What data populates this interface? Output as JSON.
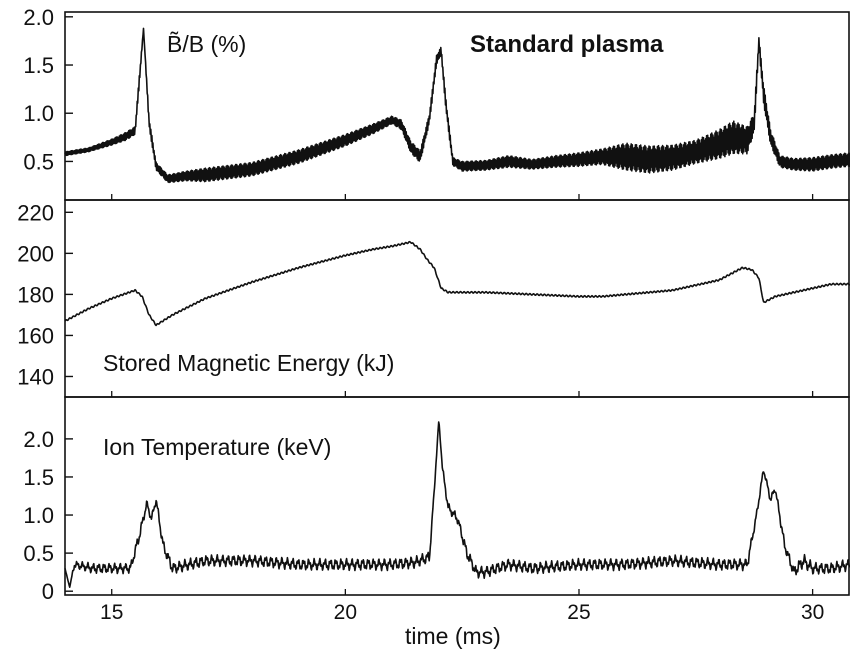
{
  "chart_data": [
    {
      "type": "line",
      "panel_label": "B̃/B (%)",
      "annotation": "Standard plasma",
      "xlim": [
        14,
        30.8
      ],
      "ylim": [
        0.1,
        2.05
      ],
      "yticks": [
        "0.5",
        "1.0",
        "1.5",
        "2.0"
      ],
      "ytick_values": [
        0.5,
        1.0,
        1.5,
        2.0
      ],
      "series": [
        {
          "style": "oscillating",
          "x": [
            14.0,
            14.5,
            15.0,
            15.3,
            15.5,
            15.6,
            15.68,
            15.8,
            15.95,
            16.2,
            16.6,
            17.0,
            18.0,
            19.0,
            20.0,
            20.6,
            21.0,
            21.2,
            21.4,
            21.6,
            21.8,
            21.95,
            22.05,
            22.15,
            22.3,
            22.5,
            23.0,
            23.5,
            24.0,
            24.5,
            25.0,
            25.5,
            26.0,
            26.5,
            27.0,
            27.5,
            28.0,
            28.3,
            28.6,
            28.75,
            28.85,
            28.95,
            29.1,
            29.3,
            29.6,
            30.0,
            30.4,
            30.8
          ],
          "y": [
            0.58,
            0.62,
            0.7,
            0.76,
            0.82,
            1.4,
            1.88,
            0.9,
            0.45,
            0.32,
            0.35,
            0.36,
            0.42,
            0.55,
            0.72,
            0.84,
            0.93,
            0.88,
            0.65,
            0.55,
            0.95,
            1.55,
            1.65,
            1.1,
            0.5,
            0.45,
            0.46,
            0.5,
            0.47,
            0.5,
            0.52,
            0.55,
            0.55,
            0.52,
            0.54,
            0.6,
            0.68,
            0.75,
            0.72,
            0.9,
            1.75,
            1.2,
            0.75,
            0.5,
            0.47,
            0.47,
            0.5,
            0.52
          ],
          "amp": [
            0.02,
            0.02,
            0.03,
            0.04,
            0.04,
            0.05,
            0.0,
            0.05,
            0.04,
            0.04,
            0.05,
            0.07,
            0.07,
            0.07,
            0.06,
            0.05,
            0.04,
            0.05,
            0.06,
            0.06,
            0.05,
            0.05,
            0.04,
            0.06,
            0.04,
            0.05,
            0.05,
            0.06,
            0.05,
            0.06,
            0.07,
            0.08,
            0.14,
            0.14,
            0.13,
            0.12,
            0.15,
            0.17,
            0.14,
            0.1,
            0.05,
            0.1,
            0.08,
            0.06,
            0.06,
            0.07,
            0.07,
            0.07
          ]
        }
      ]
    },
    {
      "type": "line",
      "panel_label": "Stored Magnetic Energy (kJ)",
      "xlim": [
        14,
        30.8
      ],
      "ylim": [
        130,
        226
      ],
      "yticks": [
        "140",
        "160",
        "180",
        "200",
        "220"
      ],
      "ytick_values": [
        140,
        160,
        180,
        200,
        220
      ],
      "series": [
        {
          "style": "smooth",
          "x": [
            14.0,
            14.5,
            15.0,
            15.5,
            15.65,
            15.8,
            15.95,
            16.3,
            17.0,
            18.0,
            19.0,
            20.0,
            20.6,
            21.0,
            21.4,
            21.6,
            21.75,
            21.9,
            22.05,
            22.2,
            22.5,
            23.0,
            24.0,
            25.0,
            25.5,
            26.0,
            27.0,
            28.0,
            28.5,
            28.7,
            28.85,
            28.95,
            29.2,
            29.6,
            30.0,
            30.4,
            30.8
          ],
          "y": [
            167,
            173,
            178,
            182,
            179,
            170,
            165,
            170,
            178,
            186,
            193,
            199,
            202,
            203.5,
            205.5,
            202,
            197,
            193,
            183,
            181,
            181,
            181,
            180,
            179,
            179,
            180,
            182,
            187,
            193,
            192,
            188,
            176,
            179,
            181,
            183,
            185,
            185
          ]
        }
      ]
    },
    {
      "type": "line",
      "panel_label": "Ion Temperature (keV)",
      "xlim": [
        14,
        30.8
      ],
      "ylim": [
        -0.05,
        2.55
      ],
      "yticks": [
        "0",
        "0.5",
        "1.0",
        "1.5",
        "2.0"
      ],
      "ytick_values": [
        0,
        0.5,
        1.0,
        1.5,
        2.0
      ],
      "series": [
        {
          "style": "noisy",
          "x": [
            14.0,
            14.1,
            14.2,
            14.6,
            15.0,
            15.4,
            15.6,
            15.75,
            15.85,
            15.95,
            16.1,
            16.3,
            17.0,
            18.0,
            19.0,
            20.0,
            21.0,
            21.5,
            21.8,
            21.9,
            22.0,
            22.08,
            22.2,
            22.4,
            22.6,
            22.8,
            23.0,
            23.5,
            24.0,
            25.0,
            26.0,
            27.0,
            28.0,
            28.6,
            28.8,
            28.95,
            29.1,
            29.2,
            29.4,
            29.6,
            29.8,
            30.0,
            30.4,
            30.8
          ],
          "y": [
            0.3,
            0.05,
            0.35,
            0.3,
            0.3,
            0.3,
            0.75,
            1.15,
            0.95,
            1.2,
            0.6,
            0.3,
            0.4,
            0.4,
            0.35,
            0.35,
            0.35,
            0.38,
            0.45,
            1.3,
            2.25,
            1.6,
            1.1,
            0.95,
            0.5,
            0.25,
            0.25,
            0.35,
            0.3,
            0.35,
            0.35,
            0.4,
            0.35,
            0.35,
            1.0,
            1.6,
            1.2,
            1.35,
            0.6,
            0.25,
            0.4,
            0.3,
            0.3,
            0.35
          ],
          "amp": [
            0.0,
            0.0,
            0.05,
            0.07,
            0.07,
            0.07,
            0.08,
            0.05,
            0.05,
            0.05,
            0.08,
            0.08,
            0.08,
            0.08,
            0.08,
            0.08,
            0.08,
            0.08,
            0.08,
            0.04,
            0.0,
            0.05,
            0.06,
            0.07,
            0.08,
            0.08,
            0.08,
            0.08,
            0.08,
            0.08,
            0.08,
            0.08,
            0.08,
            0.08,
            0.05,
            0.04,
            0.05,
            0.05,
            0.07,
            0.08,
            0.1,
            0.08,
            0.08,
            0.08
          ]
        }
      ]
    }
  ],
  "x_axis": {
    "label": "time (ms)",
    "ticks": [
      "15",
      "20",
      "25",
      "30"
    ],
    "tick_values": [
      15,
      20,
      25,
      30
    ]
  }
}
